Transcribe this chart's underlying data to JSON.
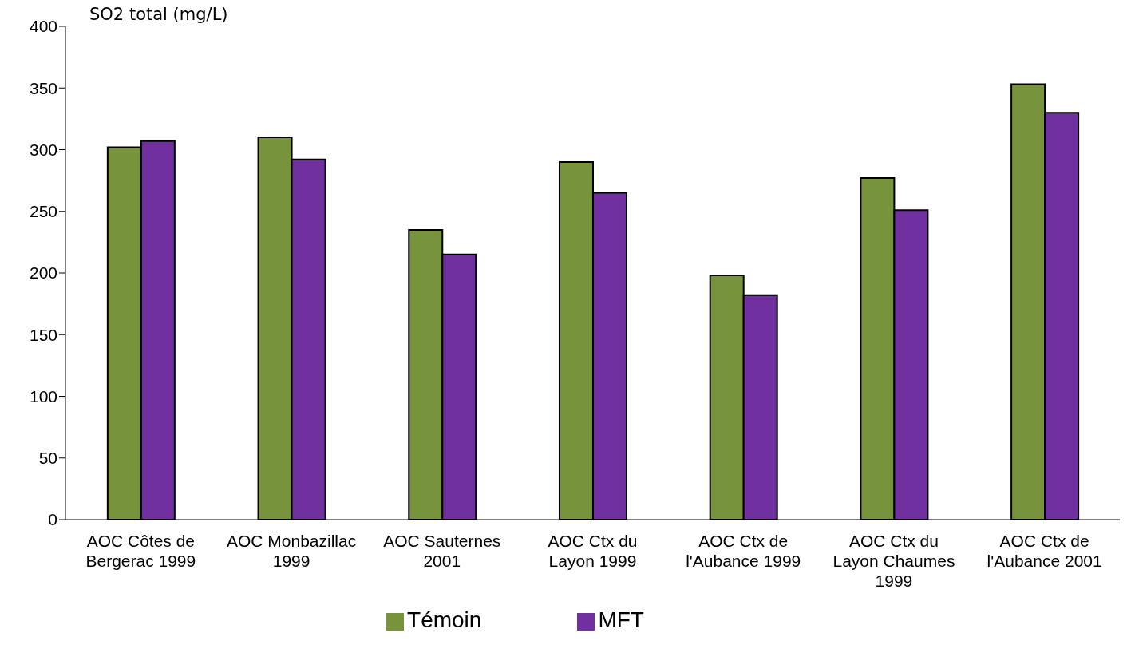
{
  "chart_data": {
    "type": "bar",
    "ylabel": "SO2 total (mg/L)",
    "categories": [
      "AOC Côtes de Bergerac 1999",
      "AOC Monbazillac 1999",
      "AOC Sauternes 2001",
      "AOC Ctx du Layon 1999",
      "AOC Ctx de l'Aubance 1999",
      "AOC Ctx du Layon Chaumes 1999",
      "AOC Ctx de l'Aubance 2001"
    ],
    "series": [
      {
        "name": "Témoin",
        "color": "#77933c",
        "values": [
          302,
          310,
          235,
          290,
          198,
          277,
          353
        ]
      },
      {
        "name": "MFT",
        "color": "#7030a0",
        "values": [
          307,
          292,
          215,
          265,
          182,
          251,
          330
        ]
      }
    ],
    "ylim": [
      0,
      400
    ],
    "yticks": [
      0,
      50,
      100,
      150,
      200,
      250,
      300,
      350,
      400
    ],
    "grid": false,
    "legend": "bottom"
  }
}
